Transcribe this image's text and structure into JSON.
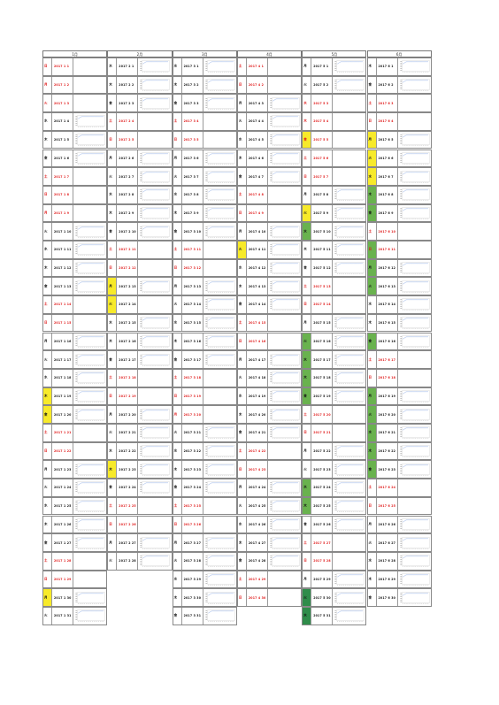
{
  "year": "2017",
  "colors": {
    "weekday": "#111111",
    "holiday": "#e01919",
    "yellow": "#f7ea2a",
    "green": "#69b24e",
    "darkgreen": "#2f8c4a",
    "line": "#3d6fd0"
  },
  "months": [
    {
      "label": "1月",
      "days": 31,
      "red": [
        1,
        2,
        3,
        7,
        8,
        9,
        14,
        15,
        21,
        22,
        28,
        29
      ],
      "yellow": [
        19,
        20,
        30
      ],
      "green": [],
      "dark": [],
      "charts": [
        4,
        5,
        6,
        10,
        11,
        12,
        13,
        16,
        17,
        18,
        19,
        20,
        23,
        24,
        25,
        26,
        27,
        30,
        31
      ]
    },
    {
      "label": "2月",
      "days": 28,
      "red": [
        4,
        5,
        11,
        12,
        18,
        19,
        25,
        26
      ],
      "yellow": [
        13,
        14,
        23
      ],
      "green": [],
      "dark": [],
      "charts": [
        1,
        2,
        3,
        6,
        7,
        8,
        9,
        10,
        13,
        15,
        16,
        17,
        20,
        21,
        22,
        23,
        24,
        27,
        28
      ]
    },
    {
      "label": "3月",
      "days": 31,
      "red": [
        4,
        5,
        11,
        12,
        18,
        19,
        20,
        25,
        26
      ],
      "yellow": [],
      "green": [],
      "dark": [],
      "charts": [
        1,
        2,
        3,
        6,
        7,
        8,
        9,
        10,
        13,
        14,
        15,
        16,
        17,
        21,
        22,
        23,
        24,
        27,
        28,
        29,
        30,
        31
      ]
    },
    {
      "label": "4月",
      "days": 30,
      "red": [
        1,
        2,
        8,
        9,
        15,
        16,
        22,
        23,
        29,
        30
      ],
      "yellow": [
        11
      ],
      "green": [],
      "dark": [],
      "charts": [
        3,
        4,
        5,
        6,
        7,
        10,
        11,
        12,
        13,
        14,
        17,
        18,
        19,
        20,
        21,
        24,
        25,
        26,
        27,
        28
      ]
    },
    {
      "label": "5月",
      "days": 31,
      "red": [
        3,
        4,
        5,
        6,
        7,
        13,
        14,
        20,
        21,
        27,
        28
      ],
      "yellow": [
        5,
        9,
        31
      ],
      "green": [
        10,
        16,
        17,
        18,
        19,
        24,
        25
      ],
      "dark": [
        30,
        31
      ],
      "charts": [
        1,
        2,
        8,
        9,
        10,
        11,
        12,
        15,
        16,
        17,
        18,
        19,
        22,
        23,
        24,
        25,
        26,
        29,
        30,
        31
      ]
    },
    {
      "label": "6月",
      "days": 30,
      "red": [
        3,
        4,
        10,
        11,
        17,
        18,
        24,
        25
      ],
      "yellow": [
        5,
        6,
        7
      ],
      "green": [
        8,
        9,
        11,
        12,
        13,
        16,
        19,
        20,
        21,
        22,
        23
      ],
      "dark": [],
      "charts": [
        1,
        2,
        5,
        6,
        7,
        8,
        9,
        12,
        13,
        14,
        15,
        16,
        19,
        20,
        21,
        22,
        23,
        26,
        27,
        28,
        29,
        30
      ]
    }
  ]
}
